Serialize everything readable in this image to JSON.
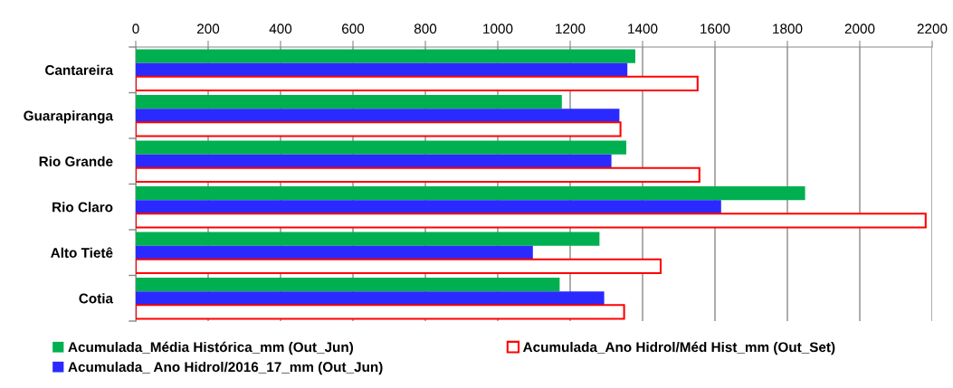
{
  "chart_data": {
    "type": "bar",
    "orientation": "horizontal",
    "categories": [
      "Cantareira",
      "Guarapiranga",
      "Rio Grande",
      "Rio Claro",
      "Alto Tietê",
      "Cotia"
    ],
    "series": [
      {
        "name": "Acumulada_Média Histórica_mm (Out_Jun)",
        "color": "#00b050",
        "values": [
          1380,
          1177,
          1355,
          1849,
          1281,
          1171
        ]
      },
      {
        "name": "Acumulada_ Ano Hidrol/2016_17_mm (Out_Jun)",
        "color": "#2a2aff",
        "values": [
          1358,
          1336,
          1314,
          1617,
          1097,
          1294
        ]
      },
      {
        "name": "Acumulada_Ano Hidrol/Méd Hist_mm (Out_Set)",
        "color": "#ff0000",
        "values": [
          1552,
          1339,
          1557,
          2182,
          1450,
          1349
        ]
      }
    ],
    "xlim": [
      0,
      2200
    ],
    "xticks": [
      0,
      200,
      400,
      600,
      800,
      1000,
      1200,
      1400,
      1600,
      1800,
      2000,
      2200
    ],
    "grid": "x",
    "legend": "bottom"
  }
}
